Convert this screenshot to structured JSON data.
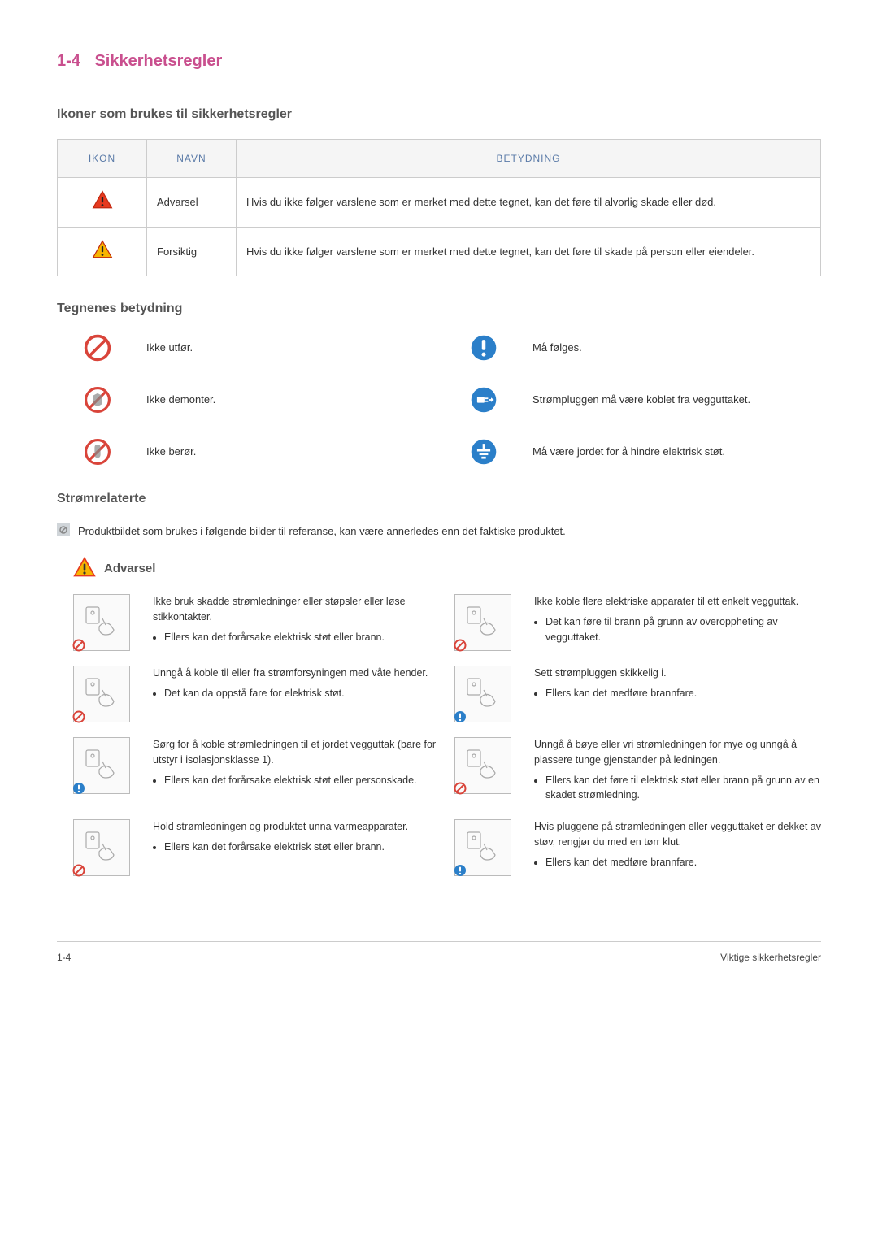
{
  "page": {
    "section_num": "1-4",
    "section_title": "Sikkerhetsregler",
    "footer_left": "1-4",
    "footer_right": "Viktige sikkerhetsregler"
  },
  "icon_section": {
    "heading": "Ikoner som brukes til sikkerhetsregler",
    "table": {
      "headers": {
        "icon": "IKON",
        "name": "NAVN",
        "meaning": "BETYDNING"
      },
      "rows": [
        {
          "icon_color": "#e63a1f",
          "name": "Advarsel",
          "meaning": "Hvis du ikke følger varslene som er merket med dette tegnet, kan det føre til alvorlig skade eller død."
        },
        {
          "icon_color": "#f7b500",
          "name": "Forsiktig",
          "meaning": "Hvis du ikke følger varslene som er merket med dette tegnet, kan det føre til skade på person eller eiendeler."
        }
      ]
    }
  },
  "symbols_section": {
    "heading": "Tegnenes betydning",
    "rows": [
      {
        "left_icon": "prohibit",
        "left_text": "Ikke utfør.",
        "right_icon": "must",
        "right_text": "Må følges."
      },
      {
        "left_icon": "no-disassemble",
        "left_text": "Ikke demonter.",
        "right_icon": "unplug",
        "right_text": "Strømpluggen må være koblet fra vegguttaket."
      },
      {
        "left_icon": "no-touch",
        "left_text": "Ikke berør.",
        "right_icon": "ground",
        "right_text": "Må være jordet for å hindre elektrisk støt."
      }
    ]
  },
  "power_section": {
    "heading": "Strømrelaterte",
    "note": "Produktbildet som brukes i følgende bilder til referanse, kan være annerledes enn det faktiske produktet.",
    "warning_label": "Advarsel",
    "items": [
      {
        "corner": "prohibit",
        "main": "Ikke bruk skadde strømledninger eller støpsler eller løse stikkontakter.",
        "bullet": "Ellers kan det forårsake elektrisk støt eller brann."
      },
      {
        "corner": "prohibit",
        "main": "Ikke koble flere elektriske apparater til ett enkelt vegguttak.",
        "bullet": "Det kan føre til brann på grunn av overoppheting av vegguttaket."
      },
      {
        "corner": "prohibit",
        "main": "Unngå å koble til eller fra strømforsyningen med våte hender.",
        "bullet": "Det kan da oppstå fare for elektrisk støt."
      },
      {
        "corner": "must",
        "main": "Sett strømpluggen skikkelig i.",
        "bullet": "Ellers kan det medføre brannfare."
      },
      {
        "corner": "must",
        "main": "Sørg for å koble strømledningen til et jordet vegguttak (bare for utstyr i isolasjonsklasse 1).",
        "bullet": "Ellers kan det forårsake elektrisk støt eller personskade."
      },
      {
        "corner": "prohibit",
        "main": "Unngå å bøye eller vri strømledningen for mye og unngå å plassere tunge gjenstander på ledningen.",
        "bullet": "Ellers kan det føre til elektrisk støt eller brann på grunn av en skadet strømledning."
      },
      {
        "corner": "prohibit",
        "main": "Hold strømledningen og produktet unna varmeapparater.",
        "bullet": "Ellers kan det forårsake elektrisk støt eller brann."
      },
      {
        "corner": "must",
        "main": "Hvis pluggene på strømledningen eller vegguttaket er dekket av støv, rengjør du med en tørr klut.",
        "bullet": "Ellers kan det medføre brannfare."
      }
    ]
  },
  "colors": {
    "prohibit": "#d9443a",
    "must": "#2b7fc9",
    "unplug": "#2b7fc9",
    "ground": "#2b7fc9",
    "heading": "#c94f8e"
  }
}
